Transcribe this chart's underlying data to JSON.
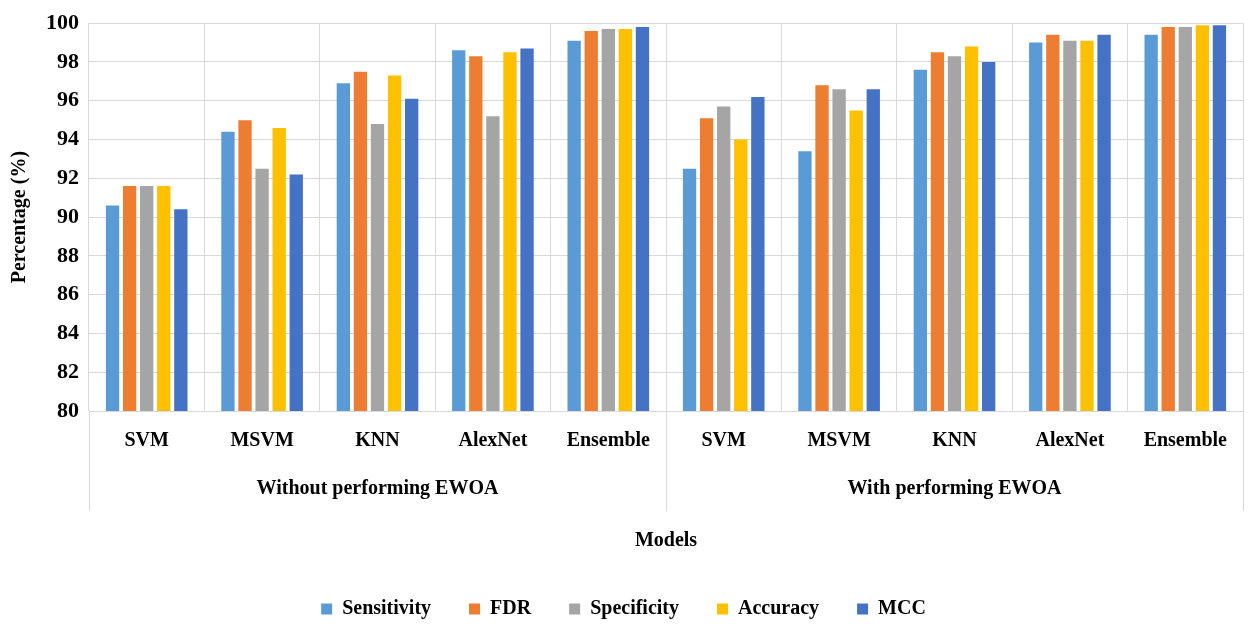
{
  "chart_data": {
    "type": "bar",
    "xlabel": "Models",
    "ylabel": "Percentage (%)",
    "categories": [
      "SVM",
      "MSVM",
      "KNN",
      "AlexNet",
      "Ensemble",
      "SVM",
      "MSVM",
      "KNN",
      "AlexNet",
      "Ensemble"
    ],
    "series": [
      {
        "name": "Sensitivity",
        "color": "#5b9bd5",
        "values": [
          90.6,
          94.4,
          96.9,
          98.6,
          99.1,
          92.5,
          93.4,
          97.6,
          99.0,
          99.4
        ]
      },
      {
        "name": "FDR",
        "color": "#ed7d31",
        "values": [
          91.6,
          95.0,
          97.5,
          98.3,
          99.6,
          95.1,
          96.8,
          98.5,
          99.4,
          99.8
        ]
      },
      {
        "name": "Specificity",
        "color": "#a5a5a5",
        "values": [
          91.6,
          92.5,
          94.8,
          95.2,
          99.7,
          95.7,
          96.6,
          98.3,
          99.1,
          99.8
        ]
      },
      {
        "name": "Accuracy",
        "color": "#ffc000",
        "values": [
          91.6,
          94.6,
          97.3,
          98.5,
          99.7,
          94.0,
          95.5,
          98.8,
          99.1,
          99.9
        ]
      },
      {
        "name": "MCC",
        "color": "#4472c4",
        "values": [
          90.4,
          92.2,
          96.1,
          98.7,
          99.8,
          96.2,
          96.6,
          98.0,
          99.4,
          99.9
        ]
      }
    ],
    "annotations": [
      "Without performing EWOA",
      "With performing EWOA"
    ],
    "ylim": [
      80,
      100
    ],
    "yticks": [
      80,
      82,
      84,
      86,
      88,
      90,
      92,
      94,
      96,
      98,
      100
    ],
    "grid": true,
    "legend": "bottom"
  }
}
